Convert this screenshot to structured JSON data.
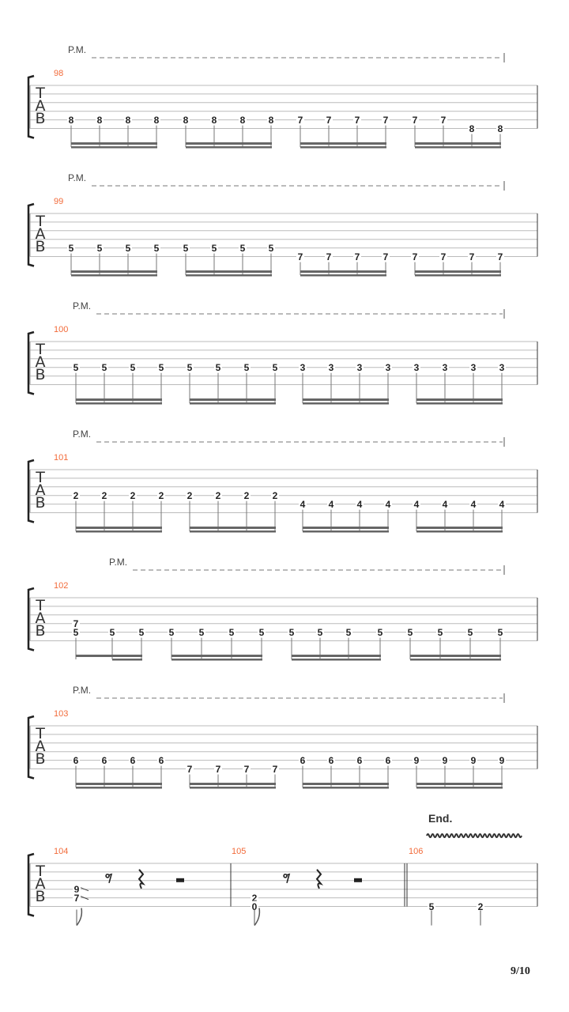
{
  "page_number": "9/10",
  "palm_mute_label": "P.M.",
  "tab_clef": [
    "T",
    "A",
    "B"
  ],
  "end_label": "End.",
  "colors": {
    "measure_number": "#f26b3a",
    "staff_line": "#bbbbbb",
    "beam": "#666666"
  },
  "systems": [
    {
      "measure": "98",
      "palm_mute": true,
      "notes": [
        {
          "fret": "8",
          "string": 5
        },
        {
          "fret": "8",
          "string": 5
        },
        {
          "fret": "8",
          "string": 5
        },
        {
          "fret": "8",
          "string": 5
        },
        {
          "fret": "8",
          "string": 5
        },
        {
          "fret": "8",
          "string": 5
        },
        {
          "fret": "8",
          "string": 5
        },
        {
          "fret": "8",
          "string": 5
        },
        {
          "fret": "7",
          "string": 5
        },
        {
          "fret": "7",
          "string": 5
        },
        {
          "fret": "7",
          "string": 5
        },
        {
          "fret": "7",
          "string": 5
        },
        {
          "fret": "7",
          "string": 5
        },
        {
          "fret": "7",
          "string": 5
        },
        {
          "fret": "8",
          "string": 6
        },
        {
          "fret": "8",
          "string": 6
        }
      ]
    },
    {
      "measure": "99",
      "palm_mute": true,
      "notes": [
        {
          "fret": "5",
          "string": 5
        },
        {
          "fret": "5",
          "string": 5
        },
        {
          "fret": "5",
          "string": 5
        },
        {
          "fret": "5",
          "string": 5
        },
        {
          "fret": "5",
          "string": 5
        },
        {
          "fret": "5",
          "string": 5
        },
        {
          "fret": "5",
          "string": 5
        },
        {
          "fret": "5",
          "string": 5
        },
        {
          "fret": "7",
          "string": 6
        },
        {
          "fret": "7",
          "string": 6
        },
        {
          "fret": "7",
          "string": 6
        },
        {
          "fret": "7",
          "string": 6
        },
        {
          "fret": "7",
          "string": 6
        },
        {
          "fret": "7",
          "string": 6
        },
        {
          "fret": "7",
          "string": 6
        },
        {
          "fret": "7",
          "string": 6
        }
      ]
    },
    {
      "measure": "100",
      "palm_mute": true,
      "notes": [
        {
          "fret": "5",
          "string": 4
        },
        {
          "fret": "5",
          "string": 4
        },
        {
          "fret": "5",
          "string": 4
        },
        {
          "fret": "5",
          "string": 4
        },
        {
          "fret": "5",
          "string": 4
        },
        {
          "fret": "5",
          "string": 4
        },
        {
          "fret": "5",
          "string": 4
        },
        {
          "fret": "5",
          "string": 4
        },
        {
          "fret": "3",
          "string": 4
        },
        {
          "fret": "3",
          "string": 4
        },
        {
          "fret": "3",
          "string": 4
        },
        {
          "fret": "3",
          "string": 4
        },
        {
          "fret": "3",
          "string": 4
        },
        {
          "fret": "3",
          "string": 4
        },
        {
          "fret": "3",
          "string": 4
        },
        {
          "fret": "3",
          "string": 4
        }
      ]
    },
    {
      "measure": "101",
      "palm_mute": true,
      "notes": [
        {
          "fret": "2",
          "string": 4
        },
        {
          "fret": "2",
          "string": 4
        },
        {
          "fret": "2",
          "string": 4
        },
        {
          "fret": "2",
          "string": 4
        },
        {
          "fret": "2",
          "string": 4
        },
        {
          "fret": "2",
          "string": 4
        },
        {
          "fret": "2",
          "string": 4
        },
        {
          "fret": "2",
          "string": 4
        },
        {
          "fret": "4",
          "string": 5
        },
        {
          "fret": "4",
          "string": 5
        },
        {
          "fret": "4",
          "string": 5
        },
        {
          "fret": "4",
          "string": 5
        },
        {
          "fret": "4",
          "string": 5
        },
        {
          "fret": "4",
          "string": 5
        },
        {
          "fret": "4",
          "string": 5
        },
        {
          "fret": "4",
          "string": 5
        }
      ]
    },
    {
      "measure": "102",
      "palm_mute": true,
      "notes": [
        {
          "fret": "5",
          "string": 5,
          "chord": [
            {
              "fret": "7",
              "string": 4
            }
          ]
        },
        {
          "fret": "5",
          "string": 5
        },
        {
          "fret": "5",
          "string": 5
        },
        {
          "fret": "5",
          "string": 5
        },
        {
          "fret": "5",
          "string": 5
        },
        {
          "fret": "5",
          "string": 5
        },
        {
          "fret": "5",
          "string": 5
        },
        {
          "fret": "5",
          "string": 5
        },
        {
          "fret": "5",
          "string": 5
        },
        {
          "fret": "5",
          "string": 5
        },
        {
          "fret": "5",
          "string": 5
        },
        {
          "fret": "5",
          "string": 5
        },
        {
          "fret": "5",
          "string": 5
        },
        {
          "fret": "5",
          "string": 5
        },
        {
          "fret": "5",
          "string": 5
        }
      ]
    },
    {
      "measure": "103",
      "palm_mute": true,
      "notes": [
        {
          "fret": "6",
          "string": 5
        },
        {
          "fret": "6",
          "string": 5
        },
        {
          "fret": "6",
          "string": 5
        },
        {
          "fret": "6",
          "string": 5
        },
        {
          "fret": "7",
          "string": 6
        },
        {
          "fret": "7",
          "string": 6
        },
        {
          "fret": "7",
          "string": 6
        },
        {
          "fret": "7",
          "string": 6
        },
        {
          "fret": "6",
          "string": 5
        },
        {
          "fret": "6",
          "string": 5
        },
        {
          "fret": "6",
          "string": 5
        },
        {
          "fret": "6",
          "string": 5
        },
        {
          "fret": "9",
          "string": 5
        },
        {
          "fret": "9",
          "string": 5
        },
        {
          "fret": "9",
          "string": 5
        },
        {
          "fret": "9",
          "string": 5
        }
      ]
    }
  ],
  "last_system": {
    "measures": [
      {
        "measure": "104",
        "chord": [
          {
            "fret": "9",
            "string": 4
          },
          {
            "fret": "7",
            "string": 5
          }
        ],
        "slide_out": true,
        "rests": [
          "eighth-rest",
          "quarter-rest",
          "half-rest"
        ]
      },
      {
        "measure": "105",
        "chord": [
          {
            "fret": "2",
            "string": 5
          },
          {
            "fret": "0",
            "string": 6
          }
        ],
        "rests": [
          "eighth-rest",
          "quarter-rest",
          "half-rest"
        ]
      },
      {
        "measure": "106",
        "notes": [
          {
            "fret": "5",
            "string": 6
          },
          {
            "fret": "2",
            "string": 6
          }
        ],
        "vibrato": true
      }
    ]
  }
}
